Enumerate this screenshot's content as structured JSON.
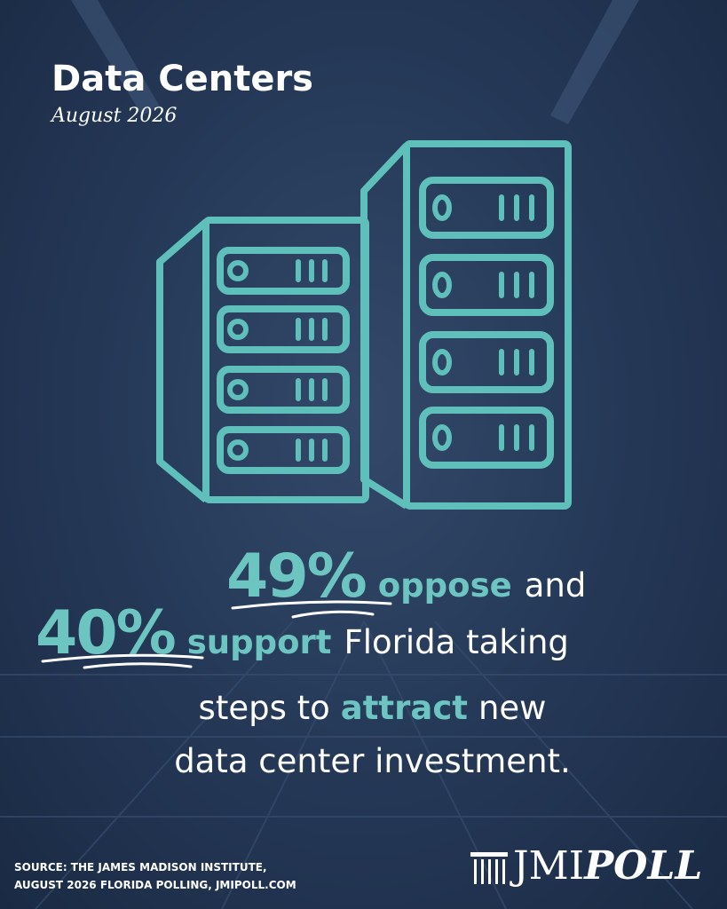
{
  "header": {
    "title": "Data Centers",
    "date": "August 2026"
  },
  "statement": {
    "oppose_pct": "49%",
    "oppose": "oppose",
    "and": "and",
    "support_pct": "40%",
    "support": "support",
    "florida": "Florida taking",
    "steps": "steps to",
    "attract": "attract",
    "new": "new",
    "last": "data center investment."
  },
  "source": {
    "line1": "SOURCE: THE JAMES MADISON INSTITUTE,",
    "line2": "AUGUST 2026 FLORIDA POLLING, JMIPOLL.COM"
  },
  "logo": {
    "jmi": "JMI",
    "poll": "POLL"
  }
}
